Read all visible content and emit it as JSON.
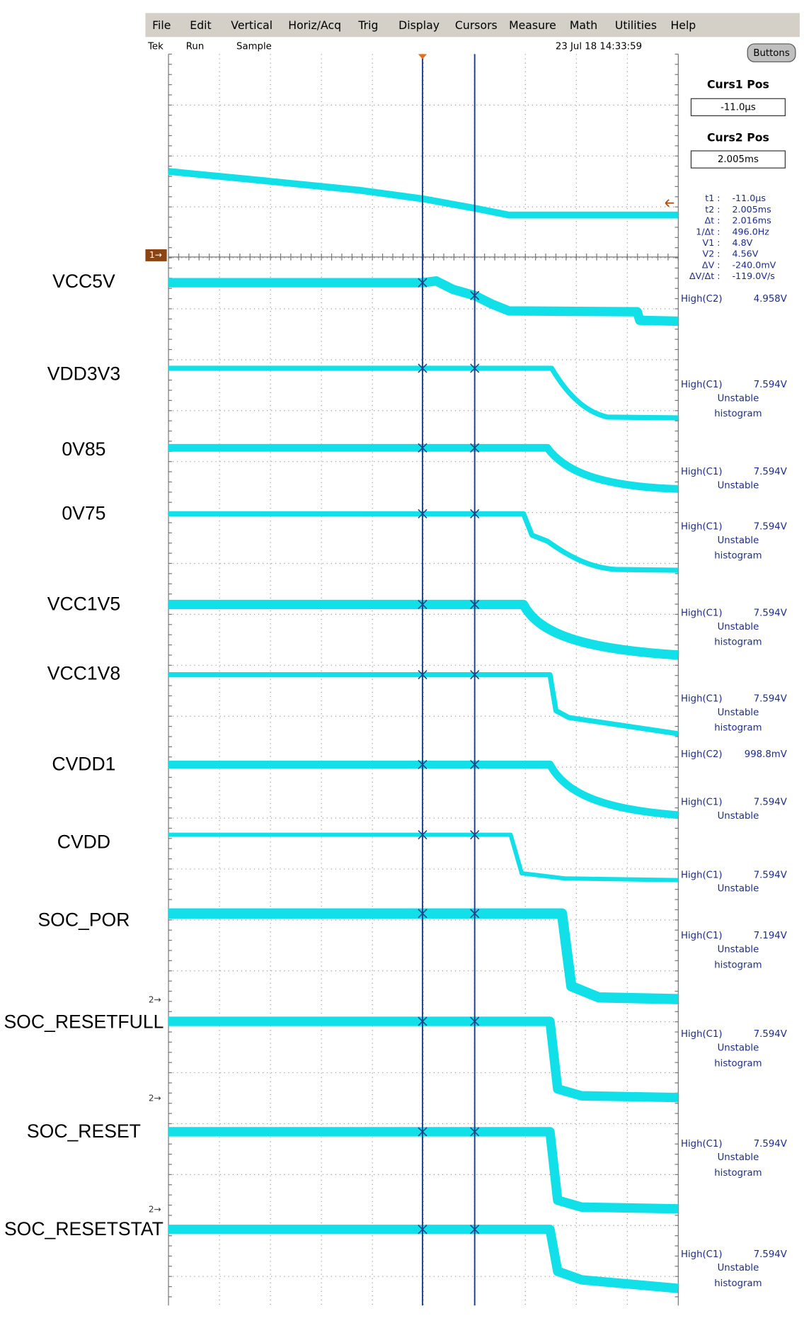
{
  "menu": [
    "File",
    "Edit",
    "Vertical",
    "Horiz/Acq",
    "Trig",
    "Display",
    "Cursors",
    "Measure",
    "Math",
    "Utilities",
    "Help"
  ],
  "status": {
    "scope": "Tek",
    "mode": "Run",
    "acquisition": "Sample",
    "timestamp": "23 Jul 18 14:33:59"
  },
  "buttons": "Buttons",
  "cursor_panel": {
    "curs1_label": "Curs1 Pos",
    "curs1_value": "-11.0µs",
    "curs2_label": "Curs2 Pos",
    "curs2_value": "2.005ms",
    "readouts": [
      {
        "label": "t1 :",
        "value": "-11.0µs"
      },
      {
        "label": "t2 :",
        "value": "2.005ms"
      },
      {
        "label": "Δt :",
        "value": "2.016ms"
      },
      {
        "label": "1/Δt :",
        "value": "496.0Hz"
      },
      {
        "label": "V1 :",
        "value": "4.8V"
      },
      {
        "label": "V2 :",
        "value": "4.56V"
      },
      {
        "label": "ΔV :",
        "value": "-240.0mV"
      },
      {
        "label": "ΔV/Δt :",
        "value": "-119.0V/s"
      }
    ]
  },
  "channel_markers": [
    "1→",
    "2→",
    "2→",
    "2→"
  ],
  "measurements": [
    {
      "label": "High(C2)",
      "value": "4.958V",
      "notes": []
    },
    {
      "label": "High(C1)",
      "value": "7.594V",
      "notes": [
        "Unstable",
        "histogram"
      ]
    },
    {
      "label": "High(C1)",
      "value": "7.594V",
      "notes": [
        "Unstable"
      ]
    },
    {
      "label": "High(C1)",
      "value": "7.594V",
      "notes": [
        "Unstable",
        "histogram"
      ]
    },
    {
      "label": "High(C1)",
      "value": "7.594V",
      "notes": [
        "Unstable",
        "histogram"
      ]
    },
    {
      "label": "High(C1)",
      "value": "7.594V",
      "notes": [
        "Unstable",
        "histogram"
      ]
    },
    {
      "label": "High(C2)",
      "value": "998.8mV",
      "notes": []
    },
    {
      "label": "High(C1)",
      "value": "7.594V",
      "notes": [
        "Unstable"
      ]
    },
    {
      "label": "High(C1)",
      "value": "7.594V",
      "notes": [
        "Unstable"
      ]
    },
    {
      "label": "High(C1)",
      "value": "7.194V",
      "notes": [
        "Unstable",
        "histogram"
      ]
    },
    {
      "label": "High(C1)",
      "value": "7.594V",
      "notes": [
        "Unstable",
        "histogram"
      ]
    },
    {
      "label": "High(C1)",
      "value": "7.594V",
      "notes": [
        "Unstable",
        "histogram"
      ]
    },
    {
      "label": "High(C1)",
      "value": "7.594V",
      "notes": [
        "Unstable",
        "histogram"
      ]
    }
  ],
  "signals": [
    "VCC5V",
    "VDD3V3",
    "0V85",
    "0V75",
    "VCC1V5",
    "VCC1V8",
    "CVDD1",
    "CVDD",
    "SOC_POR",
    "SOC_RESETFULL",
    "SOC_RESET",
    "SOC_RESETSTAT"
  ]
}
